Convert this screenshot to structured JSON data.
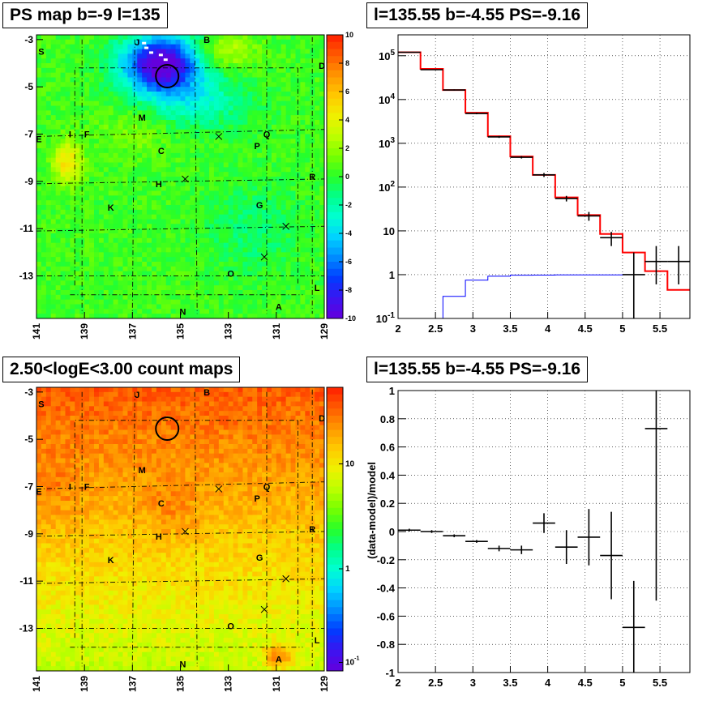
{
  "panels": {
    "ps_map": {
      "title": "PS map b=-9 l=135",
      "x_ticks": [
        "141",
        "139",
        "137",
        "135",
        "133",
        "131",
        "129"
      ],
      "y_ticks": [
        "-3",
        "-5",
        "-7",
        "-9",
        "-11",
        "-13"
      ],
      "colorbar_ticks": [
        "10",
        "8",
        "6",
        "4",
        "2",
        "0",
        "-2",
        "-4",
        "-6",
        "-8",
        "-10"
      ],
      "region_labels": [
        "S",
        "J",
        "B",
        "D",
        "E",
        "I",
        "F",
        "M",
        "Q",
        "C",
        "P",
        "R",
        "H",
        "K",
        "G",
        "O",
        "L",
        "N",
        "A"
      ]
    },
    "count_map": {
      "title": "2.50<logE<3.00 count maps",
      "x_ticks": [
        "141",
        "139",
        "137",
        "135",
        "133",
        "131",
        "129"
      ],
      "y_ticks": [
        "-3",
        "-5",
        "-7",
        "-9",
        "-11",
        "-13"
      ],
      "colorbar_ticks": [
        "10",
        "1",
        "10^-1"
      ]
    },
    "spectrum": {
      "title": "l=135.55 b=-4.55 PS=-9.16",
      "x_ticks": [
        "2",
        "2.5",
        "3",
        "3.5",
        "4",
        "4.5",
        "5",
        "5.5"
      ],
      "y_ticks": [
        "10^-1",
        "1",
        "10",
        "10^2",
        "10^3",
        "10^4",
        "10^5"
      ]
    },
    "residual": {
      "title": "l=135.55 b=-4.55 PS=-9.16",
      "ylabel": "(data-model)/model",
      "x_ticks": [
        "2",
        "2.5",
        "3",
        "3.5",
        "4",
        "4.5",
        "5",
        "5.5"
      ],
      "y_ticks": [
        "1",
        "0.8",
        "0.6",
        "0.4",
        "0.2",
        "0",
        "-0.2",
        "-0.4",
        "-0.6",
        "-0.8",
        "-1"
      ]
    }
  },
  "chart_data": [
    {
      "type": "heatmap",
      "title": "PS map b=-9 l=135",
      "xlim": [
        141,
        129
      ],
      "ylim": [
        -14.8,
        -2.8
      ],
      "zlim": [
        -10,
        10
      ],
      "circle": {
        "x": 135.55,
        "y": -4.55
      },
      "regions": [
        {
          "label": "S",
          "x": 140.8,
          "y": -3.5
        },
        {
          "label": "J",
          "x": 136.8,
          "y": -3.1
        },
        {
          "label": "B",
          "x": 133.9,
          "y": -3.0
        },
        {
          "label": "D",
          "x": 129.1,
          "y": -4.1
        },
        {
          "label": "E",
          "x": 140.9,
          "y": -7.2
        },
        {
          "label": "I",
          "x": 139.6,
          "y": -7.0
        },
        {
          "label": "F",
          "x": 138.9,
          "y": -7.0
        },
        {
          "label": "M",
          "x": 136.6,
          "y": -6.3
        },
        {
          "label": "Q",
          "x": 131.4,
          "y": -7.0
        },
        {
          "label": "C",
          "x": 135.8,
          "y": -7.7
        },
        {
          "label": "P",
          "x": 131.8,
          "y": -7.5
        },
        {
          "label": "R",
          "x": 129.5,
          "y": -8.8
        },
        {
          "label": "H",
          "x": 135.9,
          "y": -9.1
        },
        {
          "label": "K",
          "x": 137.9,
          "y": -10.1
        },
        {
          "label": "G",
          "x": 131.7,
          "y": -10.0
        },
        {
          "label": "O",
          "x": 132.9,
          "y": -12.9
        },
        {
          "label": "L",
          "x": 129.3,
          "y": -13.5
        },
        {
          "label": "N",
          "x": 134.9,
          "y": -14.5
        },
        {
          "label": "A",
          "x": 130.9,
          "y": -14.3
        }
      ],
      "crosses": [
        {
          "x": 133.4,
          "y": -7.1
        },
        {
          "x": 134.8,
          "y": -8.9
        },
        {
          "x": 130.6,
          "y": -10.9
        },
        {
          "x": 131.5,
          "y": -12.2
        }
      ]
    },
    {
      "type": "heatmap",
      "title": "2.50<logE<3.00 count maps",
      "xlim": [
        141,
        129
      ],
      "ylim": [
        -14.8,
        -2.8
      ],
      "z_scale": "log",
      "circle": {
        "x": 135.55,
        "y": -4.55
      },
      "regions": [
        {
          "label": "S",
          "x": 140.8,
          "y": -3.5
        },
        {
          "label": "J",
          "x": 136.8,
          "y": -3.1
        },
        {
          "label": "B",
          "x": 133.9,
          "y": -3.0
        },
        {
          "label": "D",
          "x": 129.1,
          "y": -4.1
        },
        {
          "label": "E",
          "x": 140.9,
          "y": -7.2
        },
        {
          "label": "I",
          "x": 139.6,
          "y": -7.0
        },
        {
          "label": "F",
          "x": 138.9,
          "y": -7.0
        },
        {
          "label": "M",
          "x": 136.6,
          "y": -6.3
        },
        {
          "label": "Q",
          "x": 131.4,
          "y": -7.0
        },
        {
          "label": "C",
          "x": 135.8,
          "y": -7.7
        },
        {
          "label": "P",
          "x": 131.8,
          "y": -7.5
        },
        {
          "label": "R",
          "x": 129.5,
          "y": -8.8
        },
        {
          "label": "H",
          "x": 135.9,
          "y": -9.1
        },
        {
          "label": "K",
          "x": 137.9,
          "y": -10.1
        },
        {
          "label": "G",
          "x": 131.7,
          "y": -10.0
        },
        {
          "label": "O",
          "x": 132.9,
          "y": -12.9
        },
        {
          "label": "L",
          "x": 129.3,
          "y": -13.5
        },
        {
          "label": "N",
          "x": 134.9,
          "y": -14.5
        },
        {
          "label": "A",
          "x": 130.9,
          "y": -14.3
        }
      ],
      "crosses": [
        {
          "x": 133.4,
          "y": -7.1
        },
        {
          "x": 134.8,
          "y": -8.9
        },
        {
          "x": 130.6,
          "y": -10.9
        },
        {
          "x": 131.5,
          "y": -12.2
        }
      ]
    },
    {
      "type": "line",
      "title": "l=135.55 b=-4.55 PS=-9.16",
      "xlim": [
        2.0,
        5.9
      ],
      "ylim": [
        0.1,
        300000
      ],
      "y_scale": "log",
      "grid": true,
      "data_points": [
        {
          "x": 2.15,
          "xerr": 0.15,
          "y": 120000,
          "ylo": 118000,
          "yhi": 122000
        },
        {
          "x": 2.45,
          "xerr": 0.15,
          "y": 48000,
          "ylo": 47000,
          "yhi": 49000
        },
        {
          "x": 2.75,
          "xerr": 0.15,
          "y": 16500,
          "ylo": 16000,
          "yhi": 17000
        },
        {
          "x": 3.05,
          "xerr": 0.15,
          "y": 4800,
          "ylo": 4600,
          "yhi": 5000
        },
        {
          "x": 3.35,
          "xerr": 0.15,
          "y": 1400,
          "ylo": 1330,
          "yhi": 1470
        },
        {
          "x": 3.65,
          "xerr": 0.15,
          "y": 480,
          "ylo": 450,
          "yhi": 510
        },
        {
          "x": 3.95,
          "xerr": 0.15,
          "y": 190,
          "ylo": 170,
          "yhi": 210
        },
        {
          "x": 4.25,
          "xerr": 0.15,
          "y": 55,
          "ylo": 47,
          "yhi": 63
        },
        {
          "x": 4.55,
          "xerr": 0.15,
          "y": 22,
          "ylo": 17,
          "yhi": 27
        },
        {
          "x": 4.85,
          "xerr": 0.15,
          "y": 7,
          "ylo": 4.5,
          "yhi": 9.5
        },
        {
          "x": 5.15,
          "xerr": 0.15,
          "y": 1,
          "ylo": 0.1,
          "yhi": 3.2
        },
        {
          "x": 5.45,
          "xerr": 0.15,
          "y": 2,
          "ylo": 0.6,
          "yhi": 4.5
        },
        {
          "x": 5.75,
          "xerr": 0.15,
          "y": 2,
          "ylo": 0.6,
          "yhi": 4.5
        }
      ],
      "series": [
        {
          "name": "",
          "color": "#ff0000",
          "edges": [
            2.0,
            2.3,
            2.6,
            2.9,
            3.2,
            3.5,
            3.8,
            4.1,
            4.4,
            4.7,
            5.0,
            5.3,
            5.6,
            5.9
          ],
          "values": [
            120000,
            50000,
            16500,
            5000,
            1450,
            500,
            190,
            58,
            23,
            8.5,
            3.2,
            1.2,
            0.45
          ]
        },
        {
          "name": "",
          "color": "#0000ff",
          "edges": [
            2.6,
            2.9,
            3.2,
            3.5,
            3.8,
            4.1,
            4.4,
            4.7,
            5.0,
            5.3
          ],
          "values": [
            0.32,
            0.75,
            0.92,
            0.97,
            0.98,
            0.99,
            0.99,
            0.99,
            1.0
          ]
        }
      ]
    },
    {
      "type": "scatter",
      "title": "l=135.55 b=-4.55 PS=-9.16",
      "ylabel": "(data-model)/model",
      "xlim": [
        2.0,
        5.9
      ],
      "ylim": [
        -1.0,
        1.0
      ],
      "grid": true,
      "points": [
        {
          "x": 2.15,
          "xerr": 0.15,
          "y": 0.01,
          "yerr": 0.01
        },
        {
          "x": 2.45,
          "xerr": 0.15,
          "y": 0.0,
          "yerr": 0.01
        },
        {
          "x": 2.75,
          "xerr": 0.15,
          "y": -0.03,
          "yerr": 0.01
        },
        {
          "x": 3.05,
          "xerr": 0.15,
          "y": -0.07,
          "yerr": 0.01
        },
        {
          "x": 3.35,
          "xerr": 0.15,
          "y": -0.12,
          "yerr": 0.02
        },
        {
          "x": 3.65,
          "xerr": 0.15,
          "y": -0.13,
          "yerr": 0.03
        },
        {
          "x": 3.95,
          "xerr": 0.15,
          "y": 0.06,
          "yerr": 0.07
        },
        {
          "x": 4.25,
          "xerr": 0.15,
          "y": -0.11,
          "yerr": 0.12
        },
        {
          "x": 4.55,
          "xerr": 0.15,
          "y": -0.04,
          "yerr": 0.2
        },
        {
          "x": 4.85,
          "xerr": 0.15,
          "y": -0.17,
          "yerr": 0.31
        },
        {
          "x": 5.15,
          "xerr": 0.15,
          "y": -0.68,
          "yerr": 0.33
        },
        {
          "x": 5.45,
          "xerr": 0.15,
          "y": 0.73,
          "yerr": 1.22
        }
      ]
    }
  ]
}
